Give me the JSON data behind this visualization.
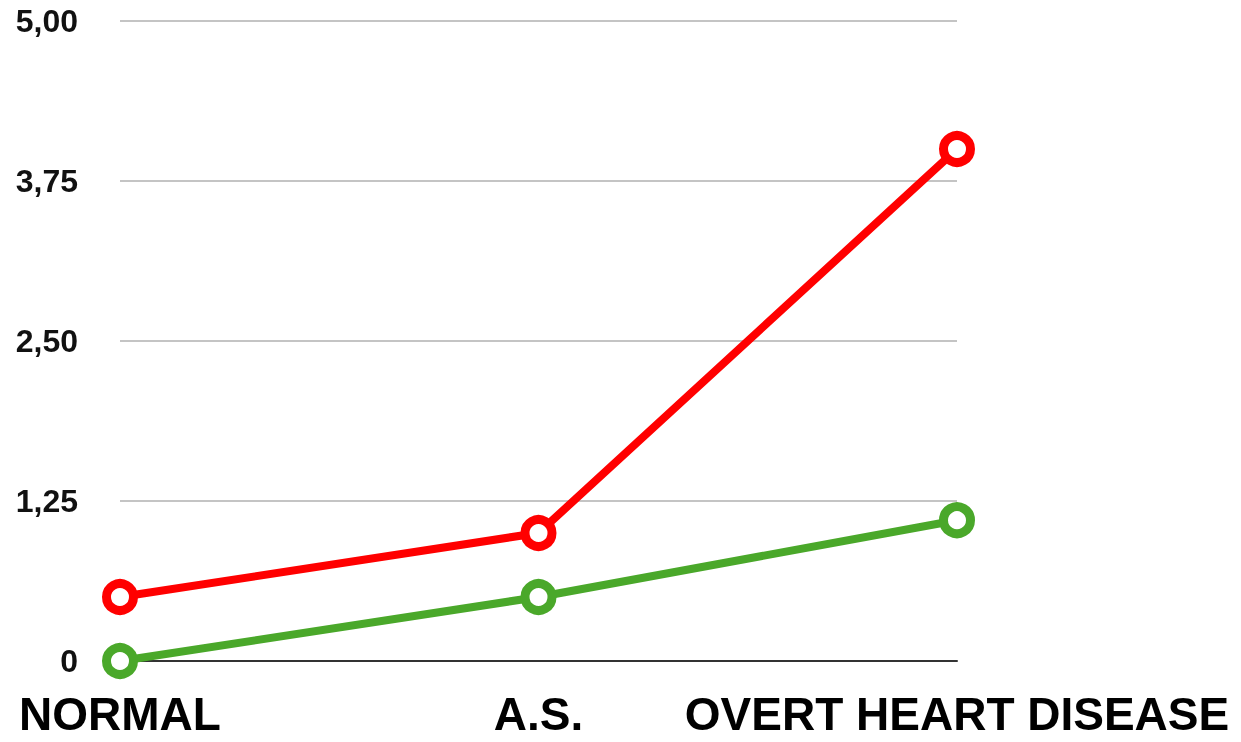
{
  "chart_data": {
    "type": "line",
    "categories": [
      "NORMAL",
      "A.S.",
      "OVERT HEART DISEASE"
    ],
    "series": [
      {
        "color": "#ff0000",
        "values": [
          0.5,
          1.0,
          4.0
        ]
      },
      {
        "color": "#4aa82a",
        "values": [
          0,
          0.5,
          1.1
        ]
      }
    ],
    "ylim": [
      0,
      5
    ],
    "yticks": [
      {
        "value": 0,
        "label": "0"
      },
      {
        "value": 1.25,
        "label": "1,25"
      },
      {
        "value": 2.5,
        "label": "2,50"
      },
      {
        "value": 3.75,
        "label": "3,75"
      },
      {
        "value": 5,
        "label": "5,00"
      }
    ],
    "grid": "y",
    "marker": "circle",
    "line_style": "solid"
  }
}
